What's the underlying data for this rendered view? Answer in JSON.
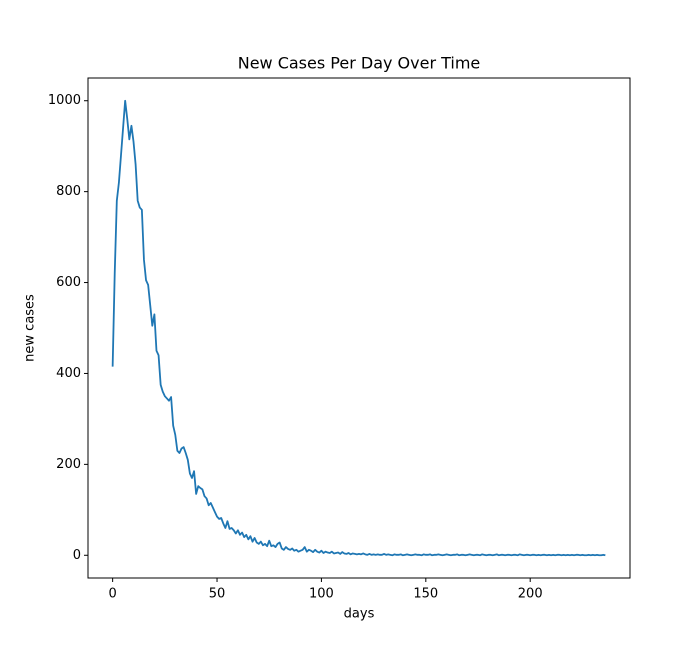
{
  "chart_data": {
    "type": "line",
    "title": "New Cases Per Day Over Time",
    "x_label": "days",
    "y_label": "new cases",
    "color": "#1f77b4",
    "x": [
      0,
      1,
      2,
      3,
      4,
      5,
      6,
      7,
      8,
      9,
      10,
      11,
      12,
      13,
      14,
      15,
      16,
      17,
      18,
      19,
      20,
      21,
      22,
      23,
      24,
      25,
      26,
      27,
      28,
      29,
      30,
      31,
      32,
      33,
      34,
      35,
      36,
      37,
      38,
      39,
      40,
      41,
      42,
      43,
      44,
      45,
      46,
      47,
      48,
      49,
      50,
      51,
      52,
      53,
      54,
      55,
      56,
      57,
      58,
      59,
      60,
      61,
      62,
      63,
      64,
      65,
      66,
      67,
      68,
      69,
      70,
      71,
      72,
      73,
      74,
      75,
      76,
      77,
      78,
      79,
      80,
      81,
      82,
      83,
      84,
      85,
      86,
      87,
      88,
      89,
      90,
      91,
      92,
      93,
      94,
      95,
      96,
      97,
      98,
      99,
      100,
      101,
      102,
      103,
      104,
      105,
      106,
      107,
      108,
      109,
      110,
      111,
      112,
      113,
      114,
      115,
      116,
      117,
      118,
      119,
      120,
      121,
      122,
      123,
      124,
      125,
      126,
      127,
      128,
      129,
      130,
      131,
      132,
      133,
      134,
      135,
      136,
      137,
      138,
      139,
      140,
      141,
      142,
      143,
      144,
      145,
      146,
      147,
      148,
      149,
      150,
      151,
      152,
      153,
      154,
      155,
      156,
      157,
      158,
      159,
      160,
      161,
      162,
      163,
      164,
      165,
      166,
      167,
      168,
      169,
      170,
      171,
      172,
      173,
      174,
      175,
      176,
      177,
      178,
      179,
      180,
      181,
      182,
      183,
      184,
      185,
      186,
      187,
      188,
      189,
      190,
      191,
      192,
      193,
      194,
      195,
      196,
      197,
      198,
      199,
      200,
      201,
      202,
      203,
      204,
      205,
      206,
      207,
      208,
      209,
      210,
      211,
      212,
      213,
      214,
      215,
      216,
      217,
      218,
      219,
      220,
      221,
      222,
      223,
      224,
      225,
      226,
      227,
      228,
      229,
      230,
      231,
      232,
      233,
      234,
      235,
      236
    ],
    "values": [
      415,
      620,
      780,
      820,
      880,
      940,
      1000,
      960,
      915,
      945,
      910,
      860,
      780,
      765,
      760,
      650,
      605,
      595,
      550,
      505,
      530,
      450,
      440,
      375,
      360,
      350,
      345,
      340,
      348,
      285,
      265,
      230,
      225,
      235,
      238,
      225,
      210,
      180,
      170,
      185,
      135,
      152,
      148,
      145,
      130,
      125,
      110,
      115,
      105,
      95,
      85,
      80,
      82,
      70,
      60,
      75,
      58,
      60,
      55,
      48,
      55,
      45,
      50,
      40,
      45,
      35,
      42,
      30,
      38,
      28,
      25,
      30,
      22,
      25,
      20,
      32,
      20,
      22,
      18,
      25,
      28,
      15,
      12,
      18,
      14,
      12,
      15,
      10,
      12,
      8,
      10,
      12,
      18,
      8,
      12,
      10,
      7,
      12,
      8,
      6,
      10,
      5,
      8,
      6,
      5,
      8,
      4,
      5,
      6,
      3,
      7,
      4,
      3,
      5,
      2,
      4,
      3,
      2,
      3,
      2,
      4,
      2,
      1,
      3,
      1,
      2,
      1,
      2,
      1,
      1,
      3,
      1,
      2,
      1,
      0,
      2,
      1,
      1,
      2,
      0,
      1,
      2,
      1,
      0,
      1,
      2,
      1,
      1,
      0,
      2,
      1,
      1,
      2,
      0,
      1,
      1,
      2,
      1,
      0,
      1,
      2,
      1,
      0,
      1,
      1,
      2,
      0,
      1,
      1,
      0,
      1,
      2,
      1,
      0,
      1,
      1,
      0,
      2,
      1,
      0,
      1,
      1,
      0,
      1,
      2,
      0,
      1,
      1,
      0,
      1,
      1,
      0,
      1,
      1,
      0,
      2,
      1,
      0,
      1,
      1,
      0,
      1,
      1,
      0,
      1,
      0,
      1,
      1,
      0,
      1,
      0,
      1,
      0,
      1,
      1,
      0,
      1,
      0,
      1,
      0,
      1,
      0,
      1,
      1,
      0,
      1,
      0,
      0,
      1,
      0,
      1,
      0,
      1,
      0,
      0,
      1,
      0
    ],
    "xlim": [
      -11.8,
      247.8
    ],
    "ylim": [
      -50,
      1050
    ],
    "xticks": [
      0,
      50,
      100,
      150,
      200
    ],
    "yticks": [
      0,
      200,
      400,
      600,
      800,
      1000
    ]
  }
}
